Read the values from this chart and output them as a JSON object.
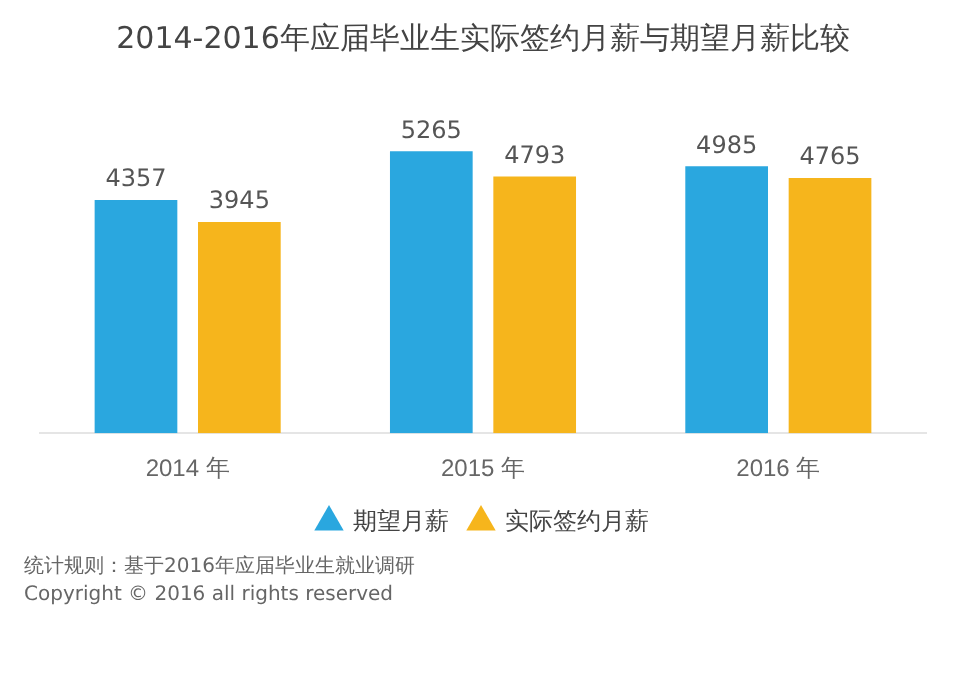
{
  "chart_data": {
    "type": "bar",
    "title": "2014-2016年应届毕业生实际签约月薪与期望月薪比较",
    "categories": [
      "2014 年",
      "2015 年",
      "2016 年"
    ],
    "series": [
      {
        "name": "期望月薪",
        "color": "#2aa7df",
        "values": [
          4357,
          5265,
          4985
        ]
      },
      {
        "name": "实际签约月薪",
        "color": "#f6b51c",
        "values": [
          3945,
          4793,
          4765
        ]
      }
    ],
    "data_labels": true,
    "legend": "bottom",
    "grid": false,
    "annotations": [
      "统计规则：基于2016年应届毕业生就业调研",
      "Copyright © 2016 all rights reserved"
    ]
  }
}
